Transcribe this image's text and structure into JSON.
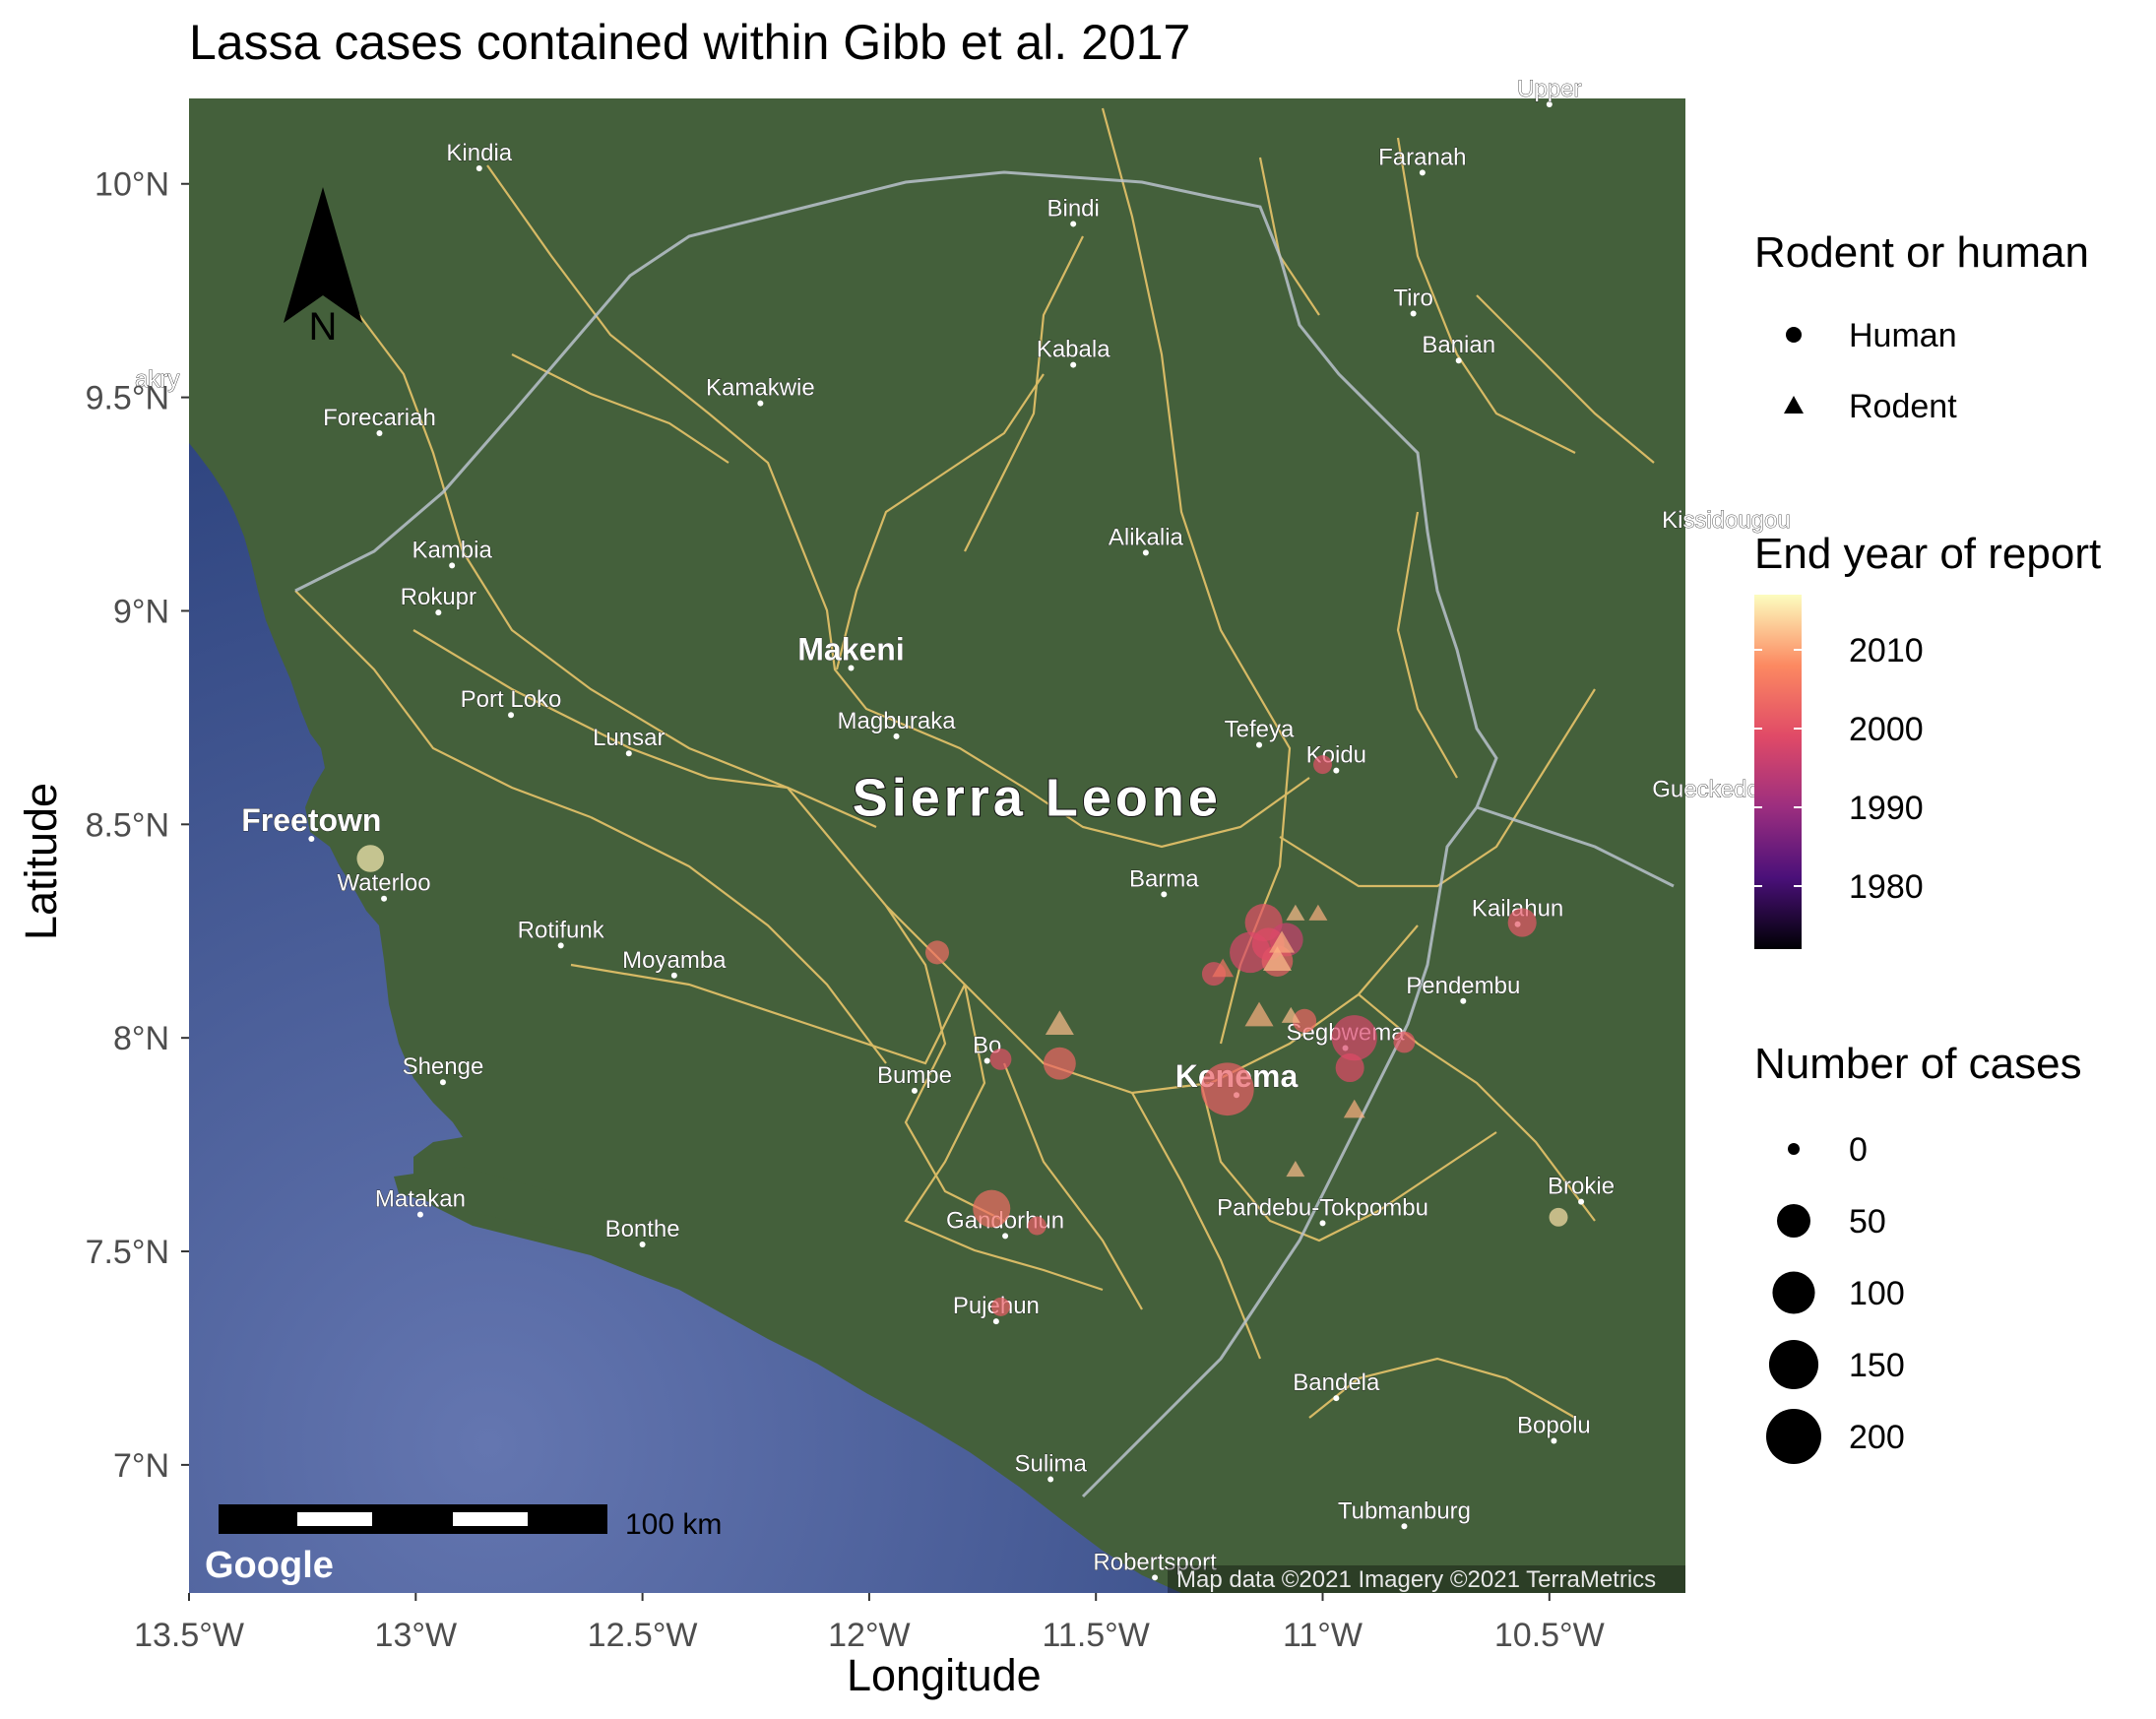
{
  "title": "Lassa cases contained within Gibb et al. 2017",
  "chart_data": {
    "type": "scatter",
    "xlabel": "Longitude",
    "ylabel": "Latitude",
    "xlim": [
      -13.5,
      -10.2
    ],
    "ylim": [
      6.7,
      10.2
    ],
    "x_ticks": [
      "13.5°W",
      "13°W",
      "12.5°W",
      "12°W",
      "11.5°W",
      "11°W",
      "10.5°W"
    ],
    "x_tick_values": [
      -13.5,
      -13.0,
      -12.5,
      -12.0,
      -11.5,
      -11.0,
      -10.5
    ],
    "y_ticks": [
      "10°N",
      "9.5°N",
      "9°N",
      "8.5°N",
      "8°N",
      "7.5°N",
      "7°N"
    ],
    "y_tick_values": [
      10.0,
      9.5,
      9.0,
      8.5,
      8.0,
      7.5,
      7.0
    ],
    "points": [
      {
        "type": "Human",
        "lon": -13.1,
        "lat": 8.42,
        "cases": 25,
        "year": 2016
      },
      {
        "type": "Human",
        "lon": -11.21,
        "lat": 7.88,
        "cases": 180,
        "year": 2002
      },
      {
        "type": "Human",
        "lon": -10.93,
        "lat": 8.0,
        "cases": 120,
        "year": 1998
      },
      {
        "type": "Human",
        "lon": -11.13,
        "lat": 8.27,
        "cases": 70,
        "year": 2000
      },
      {
        "type": "Human",
        "lon": -11.16,
        "lat": 8.2,
        "cases": 90,
        "year": 1998
      },
      {
        "type": "Human",
        "lon": -11.08,
        "lat": 8.23,
        "cases": 50,
        "year": 1996
      },
      {
        "type": "Human",
        "lon": -11.1,
        "lat": 8.18,
        "cases": 40,
        "year": 2002
      },
      {
        "type": "Human",
        "lon": -11.12,
        "lat": 8.22,
        "cases": 45,
        "year": 1999
      },
      {
        "type": "Human",
        "lon": -10.94,
        "lat": 7.93,
        "cases": 30,
        "year": 1999
      },
      {
        "type": "Human",
        "lon": -11.73,
        "lat": 7.6,
        "cases": 70,
        "year": 2004
      },
      {
        "type": "Human",
        "lon": -11.58,
        "lat": 7.94,
        "cases": 45,
        "year": 2003
      },
      {
        "type": "Human",
        "lon": -10.56,
        "lat": 8.27,
        "cases": 30,
        "year": 2001
      },
      {
        "type": "Human",
        "lon": -11.85,
        "lat": 8.2,
        "cases": 15,
        "year": 2004
      },
      {
        "type": "Human",
        "lon": -11.71,
        "lat": 7.95,
        "cases": 10,
        "year": 2000
      },
      {
        "type": "Human",
        "lon": -11.0,
        "lat": 8.64,
        "cases": 5,
        "year": 2000
      },
      {
        "type": "Human",
        "lon": -10.82,
        "lat": 7.99,
        "cases": 10,
        "year": 2001
      },
      {
        "type": "Human",
        "lon": -11.04,
        "lat": 8.04,
        "cases": 15,
        "year": 2003
      },
      {
        "type": "Human",
        "lon": -11.24,
        "lat": 8.15,
        "cases": 15,
        "year": 2000
      },
      {
        "type": "Human",
        "lon": -11.63,
        "lat": 7.56,
        "cases": 5,
        "year": 2002
      },
      {
        "type": "Human",
        "lon": -11.71,
        "lat": 7.37,
        "cases": 5,
        "year": 2002
      },
      {
        "type": "Human",
        "lon": -10.48,
        "lat": 7.58,
        "cases": 5,
        "year": 2015
      },
      {
        "type": "Rodent",
        "lon": -11.58,
        "lat": 8.03,
        "cases": 30,
        "year": 2012
      },
      {
        "type": "Rodent",
        "lon": -11.1,
        "lat": 8.18,
        "cases": 30,
        "year": 2012
      },
      {
        "type": "Rodent",
        "lon": -11.14,
        "lat": 8.05,
        "cases": 30,
        "year": 2011
      },
      {
        "type": "Rodent",
        "lon": -11.09,
        "lat": 8.22,
        "cases": 20,
        "year": 2011
      },
      {
        "type": "Rodent",
        "lon": -11.06,
        "lat": 8.29,
        "cases": 5,
        "year": 2012
      },
      {
        "type": "Rodent",
        "lon": -11.01,
        "lat": 8.29,
        "cases": 5,
        "year": 2011
      },
      {
        "type": "Rodent",
        "lon": -11.22,
        "lat": 8.16,
        "cases": 10,
        "year": 2005
      },
      {
        "type": "Rodent",
        "lon": -11.07,
        "lat": 8.05,
        "cases": 5,
        "year": 2012
      },
      {
        "type": "Rodent",
        "lon": -10.93,
        "lat": 7.83,
        "cases": 10,
        "year": 2011
      },
      {
        "type": "Rodent",
        "lon": -11.06,
        "lat": 7.69,
        "cases": 5,
        "year": 2012
      }
    ]
  },
  "map_labels": {
    "country": "Sierra Leone",
    "places": [
      {
        "name": "Kindia",
        "lon": -12.86,
        "lat": 10.05
      },
      {
        "name": "Faranah",
        "lon": -10.78,
        "lat": 10.04
      },
      {
        "name": "Bindi",
        "lon": -11.55,
        "lat": 9.92
      },
      {
        "name": "Tiro",
        "lon": -10.8,
        "lat": 9.71
      },
      {
        "name": "Banian",
        "lon": -10.7,
        "lat": 9.6
      },
      {
        "name": "Kabala",
        "lon": -11.55,
        "lat": 9.59
      },
      {
        "name": "Kamakwie",
        "lon": -12.24,
        "lat": 9.5
      },
      {
        "name": "Forecariah",
        "lon": -13.08,
        "lat": 9.43
      },
      {
        "name": "Alikalia",
        "lon": -11.39,
        "lat": 9.15
      },
      {
        "name": "Kissidougou",
        "lon": -10.11,
        "lat": 9.19
      },
      {
        "name": "Kambia",
        "lon": -12.92,
        "lat": 9.12
      },
      {
        "name": "Rokupr",
        "lon": -12.95,
        "lat": 9.01
      },
      {
        "name": "Makeni",
        "lon": -12.04,
        "lat": 8.88
      },
      {
        "name": "Port Loko",
        "lon": -12.79,
        "lat": 8.77
      },
      {
        "name": "Lunsar",
        "lon": -12.53,
        "lat": 8.68
      },
      {
        "name": "Magburaka",
        "lon": -11.94,
        "lat": 8.72
      },
      {
        "name": "Tefeya",
        "lon": -11.14,
        "lat": 8.7
      },
      {
        "name": "Koidu",
        "lon": -10.97,
        "lat": 8.64
      },
      {
        "name": "Gueckedou",
        "lon": -10.14,
        "lat": 8.56
      },
      {
        "name": "Freetown",
        "lon": -13.23,
        "lat": 8.48
      },
      {
        "name": "Waterloo",
        "lon": -13.07,
        "lat": 8.34
      },
      {
        "name": "Barma",
        "lon": -11.35,
        "lat": 8.35
      },
      {
        "name": "Rotifunk",
        "lon": -12.68,
        "lat": 8.23
      },
      {
        "name": "Moyamba",
        "lon": -12.43,
        "lat": 8.16
      },
      {
        "name": "Kailahun",
        "lon": -10.57,
        "lat": 8.28
      },
      {
        "name": "Pendembu",
        "lon": -10.69,
        "lat": 8.1
      },
      {
        "name": "Bo",
        "lon": -11.74,
        "lat": 7.96
      },
      {
        "name": "Segbwema",
        "lon": -10.95,
        "lat": 7.99
      },
      {
        "name": "Bumpe",
        "lon": -11.9,
        "lat": 7.89
      },
      {
        "name": "Kenema",
        "lon": -11.19,
        "lat": 7.88
      },
      {
        "name": "Shenge",
        "lon": -12.94,
        "lat": 7.91
      },
      {
        "name": "Brokie",
        "lon": -10.43,
        "lat": 7.63
      },
      {
        "name": "Pandebu-Tokpombu",
        "lon": -11.0,
        "lat": 7.58
      },
      {
        "name": "Matakan",
        "lon": -12.99,
        "lat": 7.6
      },
      {
        "name": "Bonthe",
        "lon": -12.5,
        "lat": 7.53
      },
      {
        "name": "Gandorhun",
        "lon": -11.7,
        "lat": 7.55
      },
      {
        "name": "Pujehun",
        "lon": -11.72,
        "lat": 7.35
      },
      {
        "name": "Bandela",
        "lon": -10.97,
        "lat": 7.17
      },
      {
        "name": "Bopolu",
        "lon": -10.49,
        "lat": 7.07
      },
      {
        "name": "Sulima",
        "lon": -11.6,
        "lat": 6.98
      },
      {
        "name": "Tubmanburg",
        "lon": -10.82,
        "lat": 6.87
      },
      {
        "name": "Robertsport",
        "lon": -11.37,
        "lat": 6.75
      },
      {
        "name": "akry",
        "lon": -13.57,
        "lat": 9.52
      },
      {
        "name": "Upper",
        "lon": -10.5,
        "lat": 10.2
      }
    ]
  },
  "north_arrow_label": "N",
  "scale_bar_label": "100 km",
  "google_logo": "Google",
  "attribution": "Map data ©2021 Imagery ©2021 TerraMetrics",
  "legend": {
    "shape_title": "Rodent or human",
    "shape_items": [
      {
        "label": "Human",
        "shape": "circle"
      },
      {
        "label": "Rodent",
        "shape": "triangle"
      }
    ],
    "color_title": "End year of report",
    "color_ticks": [
      {
        "label": "2010",
        "value": 2010
      },
      {
        "label": "2000",
        "value": 2000
      },
      {
        "label": "1990",
        "value": 1990
      },
      {
        "label": "1980",
        "value": 1980
      }
    ],
    "color_range": [
      1972,
      2017
    ],
    "size_title": "Number of cases",
    "size_items": [
      {
        "label": "0",
        "value": 0
      },
      {
        "label": "50",
        "value": 50
      },
      {
        "label": "100",
        "value": 100
      },
      {
        "label": "150",
        "value": 150
      },
      {
        "label": "200",
        "value": 200
      }
    ]
  },
  "colors": {
    "ocean": "#3b5291",
    "land": "#44603b",
    "roads": "#e8c46a",
    "borders": "#b8c2cc",
    "gradient": [
      "#fcfdbf",
      "#fc8961",
      "#e04a67",
      "#9c2e7f",
      "#4a1079",
      "#000004"
    ]
  }
}
